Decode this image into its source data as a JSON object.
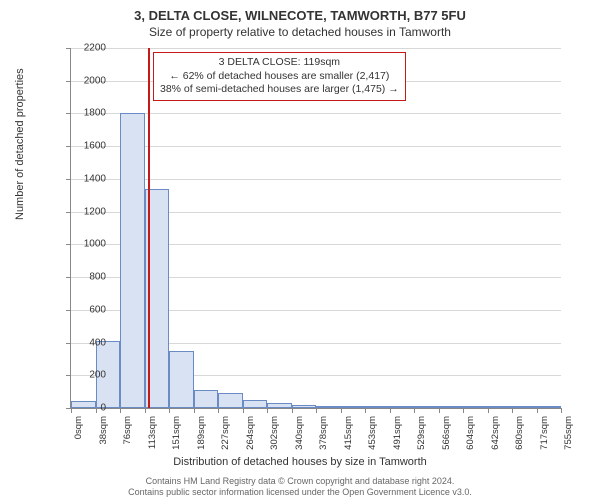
{
  "title_main": "3, DELTA CLOSE, WILNECOTE, TAMWORTH, B77 5FU",
  "title_sub": "Size of property relative to detached houses in Tamworth",
  "ylabel": "Number of detached properties",
  "xlabel": "Distribution of detached houses by size in Tamworth",
  "footer_line1": "Contains HM Land Registry data © Crown copyright and database right 2024.",
  "footer_line2": "Contains public sector information licensed under the Open Government Licence v3.0.",
  "chart": {
    "type": "bar",
    "ylim_max": 2200,
    "ytick_step": 200,
    "yticks": [
      0,
      200,
      400,
      600,
      800,
      1000,
      1200,
      1400,
      1600,
      1800,
      2000,
      2200
    ],
    "xticks_labels": [
      "0sqm",
      "38sqm",
      "76sqm",
      "113sqm",
      "151sqm",
      "189sqm",
      "227sqm",
      "264sqm",
      "302sqm",
      "340sqm",
      "378sqm",
      "415sqm",
      "453sqm",
      "491sqm",
      "529sqm",
      "566sqm",
      "604sqm",
      "642sqm",
      "680sqm",
      "717sqm",
      "755sqm"
    ],
    "bars": [
      40,
      410,
      1800,
      1340,
      350,
      110,
      90,
      50,
      30,
      20,
      15,
      10,
      10,
      8,
      8,
      5,
      5,
      5,
      3,
      3
    ],
    "bar_fill": "#d8e2f2",
    "bar_border": "#6a8bc4",
    "grid_color": "#d8d8d8",
    "axis_color": "#888888",
    "background": "#ffffff"
  },
  "reference_line": {
    "sqm": 119,
    "color": "#c61a1a"
  },
  "annotation": {
    "line1": "3 DELTA CLOSE: 119sqm",
    "line2": "← 62% of detached houses are smaller (2,417)",
    "line3": "38% of semi-detached houses are larger (1,475) →",
    "border_color": "#c61a1a",
    "background": "#ffffff",
    "fontsize": 10.5
  }
}
